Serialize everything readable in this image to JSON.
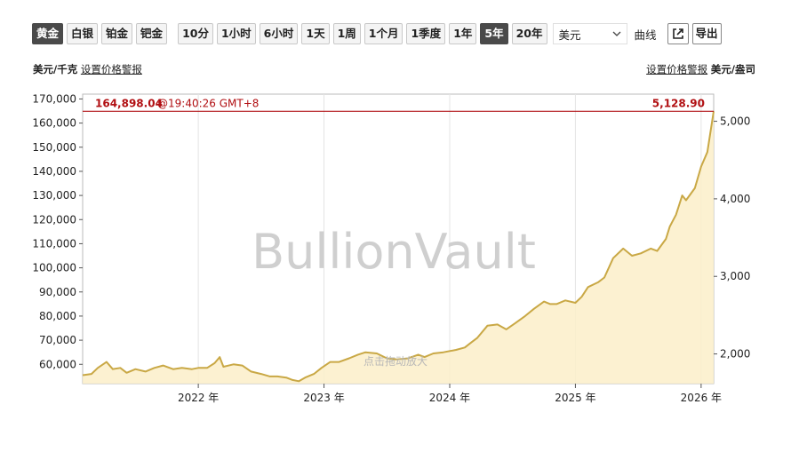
{
  "toolbar": {
    "metals": [
      "黄金",
      "白银",
      "铂金",
      "钯金"
    ],
    "active_metal": "黄金",
    "ranges": [
      "10分",
      "1小时",
      "6小时",
      "1天",
      "1周",
      "1个月",
      "1季度",
      "1年",
      "5年",
      "20年"
    ],
    "active_range": "5年",
    "currency": "美元",
    "chart_style": "曲线",
    "export_label": "导出",
    "external_icon": "external-link-icon",
    "dropdown_icon": "chevron-down-icon"
  },
  "left_header": {
    "unit": "美元/千克",
    "alert_link": "设置价格警报"
  },
  "right_header": {
    "alert_link": "设置价格警报",
    "unit": "美元/盎司"
  },
  "chart_data": {
    "type": "area",
    "watermark": "BullionVault",
    "hint": "点击拖动放大",
    "x_ticks": [
      "2022 年",
      "2023 年",
      "2024 年",
      "2025 年",
      "2026 年"
    ],
    "x_range": [
      2021.08,
      2026.1
    ],
    "y_left": {
      "unit": "美元/千克",
      "range": [
        52000,
        172000
      ],
      "ticks": [
        "60,000",
        "70,000",
        "80,000",
        "90,000",
        "100,000",
        "110,000",
        "120,000",
        "130,000",
        "140,000",
        "150,000",
        "160,000",
        "170,000"
      ]
    },
    "y_right": {
      "unit": "美元/盎司",
      "range": [
        1617,
        5350
      ],
      "ticks": [
        "2,000",
        "3,000",
        "4,000",
        "5,000"
      ]
    },
    "current_value_left": "164,898.04",
    "current_time": "@19:40:26 GMT+8",
    "current_value_right": "5,128.90",
    "current_level": 164898,
    "colors": {
      "line": "#c9a845",
      "fill": "#fcefc9",
      "marker": "#b10f12",
      "grid": "#e4e4e4"
    },
    "series": [
      {
        "x": [
          2021.08,
          2021.15,
          2021.2,
          2021.27,
          2021.32,
          2021.38,
          2021.43,
          2021.5,
          2021.58,
          2021.65,
          2021.72,
          2021.8,
          2021.87,
          2021.95,
          2022.0,
          2022.07,
          2022.13,
          2022.17,
          2022.2,
          2022.28,
          2022.35,
          2022.42,
          2022.5,
          2022.57,
          2022.63,
          2022.7,
          2022.75,
          2022.8,
          2022.85,
          2022.92,
          2022.98,
          2023.05,
          2023.12,
          2023.2,
          2023.27,
          2023.33,
          2023.42,
          2023.5,
          2023.58,
          2023.67,
          2023.75,
          2023.8,
          2023.87,
          2023.95,
          2024.05,
          2024.12,
          2024.17,
          2024.22,
          2024.3,
          2024.38,
          2024.45,
          2024.52,
          2024.6,
          2024.67,
          2024.75,
          2024.8,
          2024.85,
          2024.92,
          2025.0,
          2025.05,
          2025.1,
          2025.18,
          2025.23,
          2025.3,
          2025.38,
          2025.45,
          2025.52,
          2025.6,
          2025.65,
          2025.72,
          2025.75,
          2025.8,
          2025.85,
          2025.88,
          2025.95,
          2026.0,
          2026.05,
          2026.1
        ],
        "y": [
          55500,
          56000,
          58500,
          61000,
          58000,
          58500,
          56500,
          58000,
          57000,
          58500,
          59500,
          58000,
          58500,
          58000,
          58500,
          58500,
          60500,
          63000,
          59000,
          60000,
          59500,
          57000,
          56000,
          55000,
          55000,
          54500,
          53500,
          53000,
          54500,
          56000,
          58500,
          61000,
          61000,
          62500,
          64000,
          65000,
          64500,
          62500,
          62000,
          62500,
          64000,
          63000,
          64500,
          65000,
          66000,
          67000,
          69000,
          71000,
          76000,
          76500,
          74500,
          77000,
          80000,
          83000,
          86000,
          85000,
          85000,
          86500,
          85500,
          88000,
          92000,
          94000,
          96000,
          104000,
          108000,
          105000,
          106000,
          108000,
          107000,
          112000,
          117000,
          122000,
          130000,
          128000,
          133000,
          142000,
          148000,
          164898
        ]
      }
    ]
  }
}
